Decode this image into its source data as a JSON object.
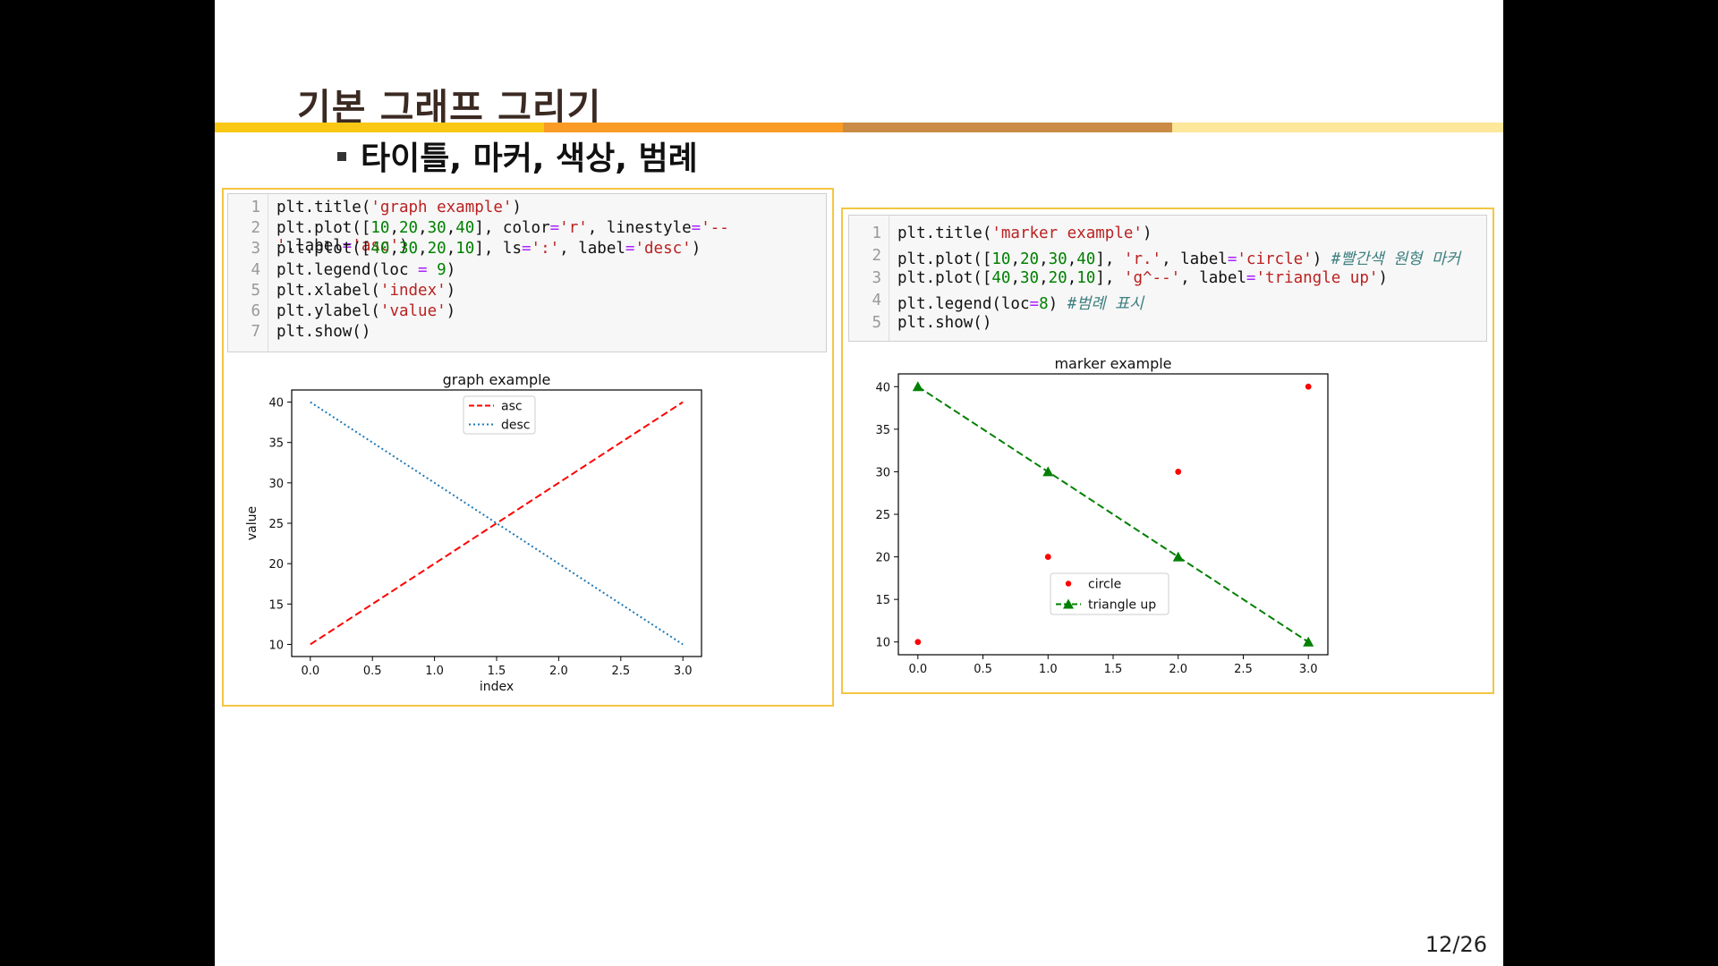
{
  "slide": {
    "title": "기본 그래프 그리기",
    "bullet": "타이틀, 마커, 색상, 범례",
    "page_number": "12/26",
    "bar_colors": [
      "#f9c814",
      "#f99b25",
      "#c98b45",
      "#fde79a"
    ]
  },
  "code1": {
    "numbers": [
      "1",
      "2",
      "3",
      "4",
      "5",
      "6",
      "7"
    ],
    "lines": [
      [
        [
          "plt.title(",
          ""
        ],
        [
          "'graph example'",
          "s"
        ],
        [
          ")",
          ""
        ]
      ],
      [
        [
          "plt.plot([",
          ""
        ],
        [
          "10",
          "n"
        ],
        [
          ",",
          ""
        ],
        [
          "20",
          "n"
        ],
        [
          ",",
          ""
        ],
        [
          "30",
          "n"
        ],
        [
          ",",
          ""
        ],
        [
          "40",
          "n"
        ],
        [
          "], color",
          ""
        ],
        [
          "=",
          "o"
        ],
        [
          "'r'",
          "s"
        ],
        [
          ", linestyle",
          ""
        ],
        [
          "=",
          "o"
        ],
        [
          "'--'",
          "s"
        ],
        [
          ",label",
          ""
        ],
        [
          "=",
          "o"
        ],
        [
          "'asc'",
          "s"
        ],
        [
          ")",
          ""
        ]
      ],
      [
        [
          "plt.plot([",
          ""
        ],
        [
          "40",
          "n"
        ],
        [
          ",",
          ""
        ],
        [
          "30",
          "n"
        ],
        [
          ",",
          ""
        ],
        [
          "20",
          "n"
        ],
        [
          ",",
          ""
        ],
        [
          "10",
          "n"
        ],
        [
          "], ls",
          ""
        ],
        [
          "=",
          "o"
        ],
        [
          "':'",
          "s"
        ],
        [
          ", label",
          ""
        ],
        [
          "=",
          "o"
        ],
        [
          "'desc'",
          "s"
        ],
        [
          ")",
          ""
        ]
      ],
      [
        [
          "plt.legend(loc ",
          ""
        ],
        [
          "=",
          "o"
        ],
        [
          " ",
          ""
        ],
        [
          "9",
          "n"
        ],
        [
          ")",
          ""
        ]
      ],
      [
        [
          "plt.xlabel(",
          ""
        ],
        [
          "'index'",
          "s"
        ],
        [
          ")",
          ""
        ]
      ],
      [
        [
          "plt.ylabel(",
          ""
        ],
        [
          "'value'",
          "s"
        ],
        [
          ")",
          ""
        ]
      ],
      [
        [
          "plt.show()",
          ""
        ]
      ]
    ]
  },
  "code2": {
    "numbers": [
      "1",
      "2",
      "3",
      "4",
      "5"
    ],
    "lines": [
      [
        [
          "plt.title(",
          ""
        ],
        [
          "'marker example'",
          "s"
        ],
        [
          ")",
          ""
        ]
      ],
      [
        [
          "plt.plot([",
          ""
        ],
        [
          "10",
          "n"
        ],
        [
          ",",
          ""
        ],
        [
          "20",
          "n"
        ],
        [
          ",",
          ""
        ],
        [
          "30",
          "n"
        ],
        [
          ",",
          ""
        ],
        [
          "40",
          "n"
        ],
        [
          "], ",
          ""
        ],
        [
          "'r.'",
          "s"
        ],
        [
          ", label",
          ""
        ],
        [
          "=",
          "o"
        ],
        [
          "'circle'",
          "s"
        ],
        [
          ") ",
          ""
        ],
        [
          "#빨간색 원형 마커",
          "c"
        ]
      ],
      [
        [
          "plt.plot([",
          ""
        ],
        [
          "40",
          "n"
        ],
        [
          ",",
          ""
        ],
        [
          "30",
          "n"
        ],
        [
          ",",
          ""
        ],
        [
          "20",
          "n"
        ],
        [
          ",",
          ""
        ],
        [
          "10",
          "n"
        ],
        [
          "], ",
          ""
        ],
        [
          "'g^--'",
          "s"
        ],
        [
          ", label",
          ""
        ],
        [
          "=",
          "o"
        ],
        [
          "'triangle up'",
          "s"
        ],
        [
          ")",
          ""
        ]
      ],
      [
        [
          "plt.legend(loc",
          ""
        ],
        [
          "=",
          "o"
        ],
        [
          "8",
          "n"
        ],
        [
          ") ",
          ""
        ],
        [
          "#범례 표시",
          "c"
        ]
      ],
      [
        [
          "plt.show()",
          ""
        ]
      ]
    ]
  },
  "chart_data": [
    {
      "type": "line",
      "title": "graph example",
      "xlabel": "index",
      "ylabel": "value",
      "x": [
        0,
        1,
        2,
        3
      ],
      "xlim": [
        -0.15,
        3.15
      ],
      "ylim": [
        8.5,
        41.5
      ],
      "xticks": [
        "0.0",
        "0.5",
        "1.0",
        "1.5",
        "2.0",
        "2.5",
        "3.0"
      ],
      "yticks": [
        "10",
        "15",
        "20",
        "25",
        "30",
        "35",
        "40"
      ],
      "legend": "upper center",
      "grid": false,
      "series": [
        {
          "name": "asc",
          "values": [
            10,
            20,
            30,
            40
          ],
          "color": "#ff0000",
          "linestyle": "dashed"
        },
        {
          "name": "desc",
          "values": [
            40,
            30,
            20,
            10
          ],
          "color": "#1f77b4",
          "linestyle": "dotted"
        }
      ]
    },
    {
      "type": "line",
      "title": "marker example",
      "xlabel": "",
      "ylabel": "",
      "x": [
        0,
        1,
        2,
        3
      ],
      "xlim": [
        -0.15,
        3.15
      ],
      "ylim": [
        8.5,
        41.5
      ],
      "xticks": [
        "0.0",
        "0.5",
        "1.0",
        "1.5",
        "2.0",
        "2.5",
        "3.0"
      ],
      "yticks": [
        "10",
        "15",
        "20",
        "25",
        "30",
        "35",
        "40"
      ],
      "legend": "lower center",
      "grid": false,
      "series": [
        {
          "name": "circle",
          "values": [
            10,
            20,
            30,
            40
          ],
          "color": "#ff0000",
          "marker": "point",
          "linestyle": "none"
        },
        {
          "name": "triangle up",
          "values": [
            40,
            30,
            20,
            10
          ],
          "color": "#008000",
          "marker": "triangle-up",
          "linestyle": "dashed"
        }
      ]
    }
  ]
}
